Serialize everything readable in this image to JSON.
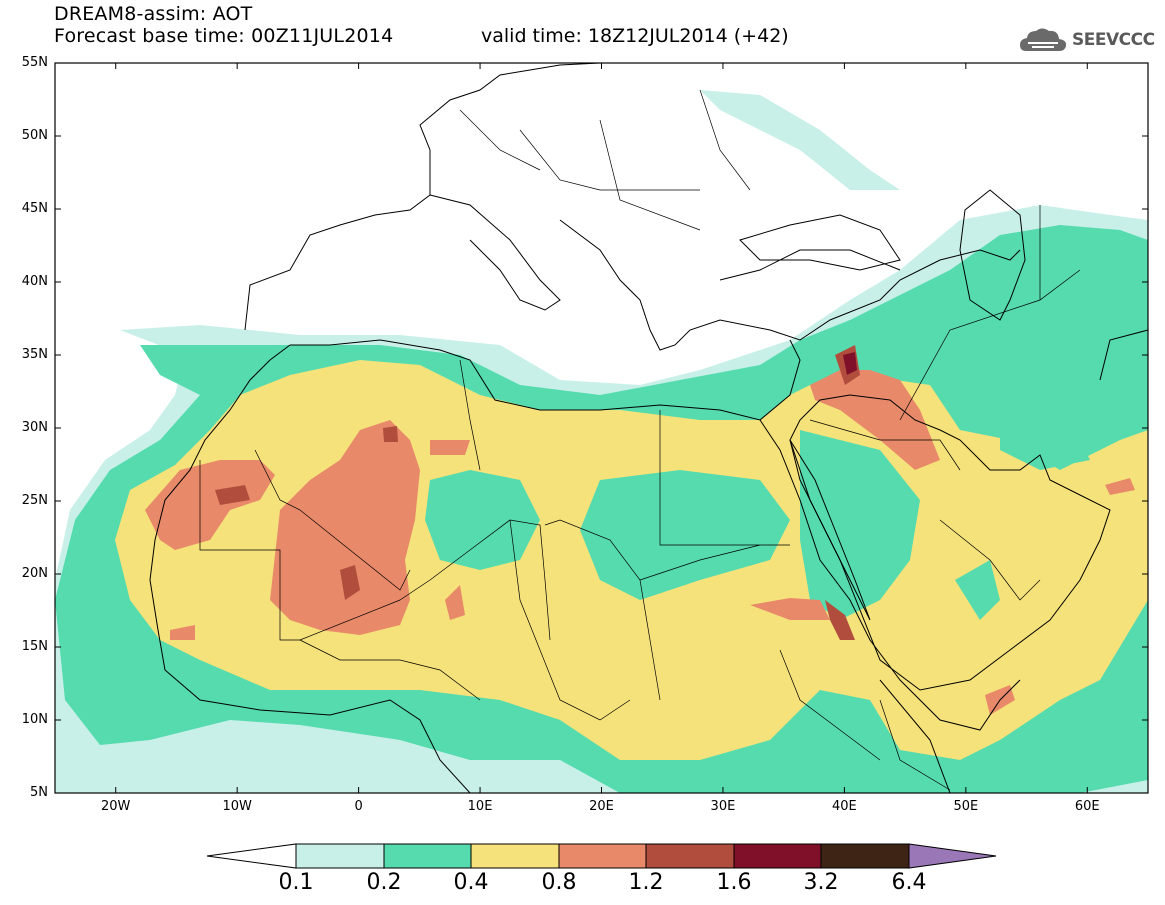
{
  "header": {
    "title": "DREAM8-assim: AOT",
    "base_time": "Forecast base time: 00Z11JUL2014",
    "valid_time": "valid time: 18Z12JUL2014 (+42)",
    "logo_text": "SEEVCCC"
  },
  "map": {
    "lat_labels": [
      "55N",
      "50N",
      "45N",
      "40N",
      "35N",
      "30N",
      "25N",
      "20N",
      "15N",
      "10N",
      "5N"
    ],
    "lon_labels": [
      "20W",
      "10W",
      "0",
      "10E",
      "20E",
      "30E",
      "40E",
      "50E",
      "60E"
    ],
    "lat_range": [
      5,
      55
    ],
    "lon_range": [
      -25,
      65
    ]
  },
  "colorbar": {
    "labels": [
      "0.1",
      "0.2",
      "0.4",
      "0.8",
      "1.2",
      "1.6",
      "3.2",
      "6.4"
    ],
    "colors": [
      "#c8f0e8",
      "#55dbae",
      "#f5e27a",
      "#e8896a",
      "#b14d3d",
      "#80102a",
      "#3d2415",
      "#9a78b8"
    ]
  }
}
